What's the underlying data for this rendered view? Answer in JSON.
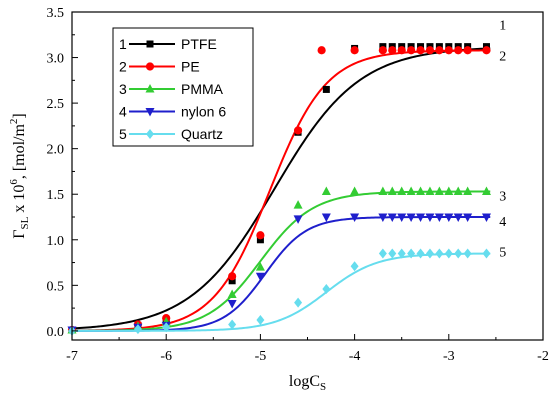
{
  "chart_data": {
    "type": "line",
    "title": "",
    "xlabel": {
      "base": "logC",
      "sub": "S"
    },
    "ylabel": {
      "gamma": "Γ",
      "sub": "SL",
      "mid": " x 10",
      "sup": "6",
      "unit_pre": ", [mol/m",
      "unit_sup": "2",
      "unit_post": "]"
    },
    "xlim": [
      -7,
      -2
    ],
    "ylim": [
      -0.1,
      3.5
    ],
    "xticks": [
      "-7",
      "-6",
      "-5",
      "-4",
      "-3",
      "-2"
    ],
    "yticks": [
      "0.0",
      "0.5",
      "1.0",
      "1.5",
      "2.0",
      "2.5",
      "3.0",
      "3.5"
    ],
    "grid": false,
    "legend_position": "top-left",
    "series": [
      {
        "id": "1",
        "name": "PTFE",
        "color": "#000000",
        "marker": "square",
        "end_label": "1",
        "x": [
          -7,
          -6.3,
          -6,
          -5.3,
          -5,
          -4.6,
          -4.3,
          -4,
          -3.7,
          -3.6,
          -3.5,
          -3.4,
          -3.3,
          -3.2,
          -3.1,
          -3.0,
          -2.9,
          -2.8,
          -2.6
        ],
        "y": [
          0.01,
          0.06,
          0.12,
          0.55,
          1.0,
          2.18,
          2.65,
          3.1,
          3.12,
          3.12,
          3.12,
          3.12,
          3.12,
          3.12,
          3.12,
          3.12,
          3.12,
          3.12,
          3.12
        ],
        "fit": {
          "top": 3.12,
          "x0": -4.85,
          "k": 0.45
        }
      },
      {
        "id": "2",
        "name": "PE",
        "color": "#ff0000",
        "marker": "circle",
        "end_label": "2",
        "x": [
          -7,
          -6.3,
          -6,
          -5.3,
          -5,
          -4.6,
          -4.35,
          -4,
          -3.7,
          -3.6,
          -3.5,
          -3.4,
          -3.3,
          -3.2,
          -3.1,
          -3.0,
          -2.9,
          -2.8,
          -2.6
        ],
        "y": [
          0.01,
          0.07,
          0.14,
          0.6,
          1.05,
          2.2,
          3.08,
          3.08,
          3.08,
          3.08,
          3.08,
          3.08,
          3.08,
          3.08,
          3.08,
          3.08,
          3.08,
          3.08,
          3.08
        ],
        "fit": {
          "top": 3.08,
          "x0": -4.9,
          "k": 0.3
        }
      },
      {
        "id": "3",
        "name": "PMMA",
        "color": "#33cc33",
        "marker": "triangle-up",
        "end_label": "3",
        "x": [
          -7,
          -6.3,
          -6,
          -5.3,
          -5,
          -4.6,
          -4.3,
          -4,
          -3.7,
          -3.6,
          -3.5,
          -3.4,
          -3.3,
          -3.2,
          -3.1,
          -3.0,
          -2.9,
          -2.8,
          -2.6
        ],
        "y": [
          0.01,
          0.05,
          0.1,
          0.4,
          0.7,
          1.38,
          1.53,
          1.53,
          1.53,
          1.53,
          1.53,
          1.53,
          1.53,
          1.53,
          1.53,
          1.53,
          1.53,
          1.53,
          1.53
        ],
        "fit": {
          "top": 1.53,
          "x0": -5.0,
          "k": 0.28
        }
      },
      {
        "id": "4",
        "name": "nylon 6",
        "color": "#1f1fcc",
        "marker": "triangle-down",
        "end_label": "4",
        "x": [
          -7,
          -6.3,
          -6,
          -5.3,
          -5,
          -4.6,
          -4.3,
          -4,
          -3.7,
          -3.6,
          -3.5,
          -3.4,
          -3.3,
          -3.2,
          -3.1,
          -3.0,
          -2.9,
          -2.8,
          -2.6
        ],
        "y": [
          0.01,
          0.04,
          0.06,
          0.3,
          0.6,
          1.23,
          1.25,
          1.25,
          1.25,
          1.25,
          1.25,
          1.25,
          1.25,
          1.25,
          1.25,
          1.25,
          1.25,
          1.25,
          1.25
        ],
        "fit": {
          "top": 1.25,
          "x0": -4.95,
          "k": 0.22
        }
      },
      {
        "id": "5",
        "name": "Quartz",
        "color": "#66ddee",
        "marker": "diamond",
        "end_label": "5",
        "x": [
          -7,
          -6.3,
          -6,
          -5.3,
          -5,
          -4.6,
          -4.3,
          -4,
          -3.7,
          -3.6,
          -3.5,
          -3.4,
          -3.3,
          -3.2,
          -3.1,
          -3.0,
          -2.9,
          -2.8,
          -2.6
        ],
        "y": [
          0.0,
          0.02,
          0.04,
          0.07,
          0.12,
          0.31,
          0.46,
          0.71,
          0.85,
          0.85,
          0.85,
          0.85,
          0.85,
          0.85,
          0.85,
          0.85,
          0.85,
          0.85,
          0.85
        ],
        "fit": {
          "top": 0.85,
          "x0": -4.3,
          "k": 0.27
        }
      }
    ]
  }
}
